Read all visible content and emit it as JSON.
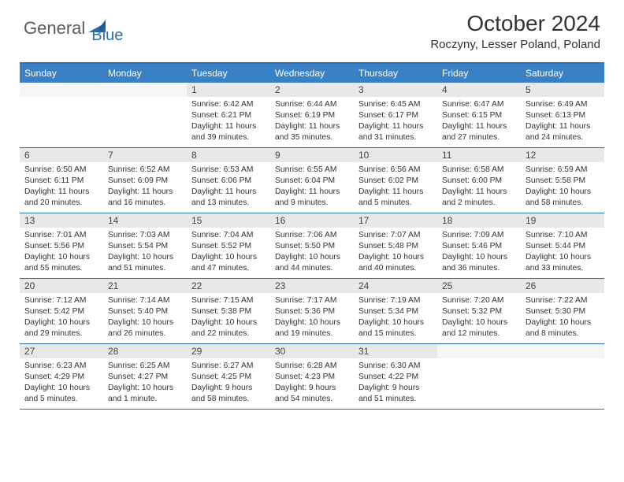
{
  "logo": {
    "part1": "General",
    "part2": "Blue"
  },
  "title": "October 2024",
  "location": "Roczyny, Lesser Poland, Poland",
  "colors": {
    "header_bg": "#3a80c4",
    "border": "#2d6db0",
    "daynum_bg": "#e8e8e8",
    "logo_blue": "#2d6db0",
    "logo_gray": "#5a5a5a"
  },
  "dayHeaders": [
    "Sunday",
    "Monday",
    "Tuesday",
    "Wednesday",
    "Thursday",
    "Friday",
    "Saturday"
  ],
  "weeks": [
    [
      {
        "n": "",
        "sun": "",
        "set": "",
        "day": ""
      },
      {
        "n": "",
        "sun": "",
        "set": "",
        "day": ""
      },
      {
        "n": "1",
        "sun": "Sunrise: 6:42 AM",
        "set": "Sunset: 6:21 PM",
        "day": "Daylight: 11 hours and 39 minutes."
      },
      {
        "n": "2",
        "sun": "Sunrise: 6:44 AM",
        "set": "Sunset: 6:19 PM",
        "day": "Daylight: 11 hours and 35 minutes."
      },
      {
        "n": "3",
        "sun": "Sunrise: 6:45 AM",
        "set": "Sunset: 6:17 PM",
        "day": "Daylight: 11 hours and 31 minutes."
      },
      {
        "n": "4",
        "sun": "Sunrise: 6:47 AM",
        "set": "Sunset: 6:15 PM",
        "day": "Daylight: 11 hours and 27 minutes."
      },
      {
        "n": "5",
        "sun": "Sunrise: 6:49 AM",
        "set": "Sunset: 6:13 PM",
        "day": "Daylight: 11 hours and 24 minutes."
      }
    ],
    [
      {
        "n": "6",
        "sun": "Sunrise: 6:50 AM",
        "set": "Sunset: 6:11 PM",
        "day": "Daylight: 11 hours and 20 minutes."
      },
      {
        "n": "7",
        "sun": "Sunrise: 6:52 AM",
        "set": "Sunset: 6:09 PM",
        "day": "Daylight: 11 hours and 16 minutes."
      },
      {
        "n": "8",
        "sun": "Sunrise: 6:53 AM",
        "set": "Sunset: 6:06 PM",
        "day": "Daylight: 11 hours and 13 minutes."
      },
      {
        "n": "9",
        "sun": "Sunrise: 6:55 AM",
        "set": "Sunset: 6:04 PM",
        "day": "Daylight: 11 hours and 9 minutes."
      },
      {
        "n": "10",
        "sun": "Sunrise: 6:56 AM",
        "set": "Sunset: 6:02 PM",
        "day": "Daylight: 11 hours and 5 minutes."
      },
      {
        "n": "11",
        "sun": "Sunrise: 6:58 AM",
        "set": "Sunset: 6:00 PM",
        "day": "Daylight: 11 hours and 2 minutes."
      },
      {
        "n": "12",
        "sun": "Sunrise: 6:59 AM",
        "set": "Sunset: 5:58 PM",
        "day": "Daylight: 10 hours and 58 minutes."
      }
    ],
    [
      {
        "n": "13",
        "sun": "Sunrise: 7:01 AM",
        "set": "Sunset: 5:56 PM",
        "day": "Daylight: 10 hours and 55 minutes."
      },
      {
        "n": "14",
        "sun": "Sunrise: 7:03 AM",
        "set": "Sunset: 5:54 PM",
        "day": "Daylight: 10 hours and 51 minutes."
      },
      {
        "n": "15",
        "sun": "Sunrise: 7:04 AM",
        "set": "Sunset: 5:52 PM",
        "day": "Daylight: 10 hours and 47 minutes."
      },
      {
        "n": "16",
        "sun": "Sunrise: 7:06 AM",
        "set": "Sunset: 5:50 PM",
        "day": "Daylight: 10 hours and 44 minutes."
      },
      {
        "n": "17",
        "sun": "Sunrise: 7:07 AM",
        "set": "Sunset: 5:48 PM",
        "day": "Daylight: 10 hours and 40 minutes."
      },
      {
        "n": "18",
        "sun": "Sunrise: 7:09 AM",
        "set": "Sunset: 5:46 PM",
        "day": "Daylight: 10 hours and 36 minutes."
      },
      {
        "n": "19",
        "sun": "Sunrise: 7:10 AM",
        "set": "Sunset: 5:44 PM",
        "day": "Daylight: 10 hours and 33 minutes."
      }
    ],
    [
      {
        "n": "20",
        "sun": "Sunrise: 7:12 AM",
        "set": "Sunset: 5:42 PM",
        "day": "Daylight: 10 hours and 29 minutes."
      },
      {
        "n": "21",
        "sun": "Sunrise: 7:14 AM",
        "set": "Sunset: 5:40 PM",
        "day": "Daylight: 10 hours and 26 minutes."
      },
      {
        "n": "22",
        "sun": "Sunrise: 7:15 AM",
        "set": "Sunset: 5:38 PM",
        "day": "Daylight: 10 hours and 22 minutes."
      },
      {
        "n": "23",
        "sun": "Sunrise: 7:17 AM",
        "set": "Sunset: 5:36 PM",
        "day": "Daylight: 10 hours and 19 minutes."
      },
      {
        "n": "24",
        "sun": "Sunrise: 7:19 AM",
        "set": "Sunset: 5:34 PM",
        "day": "Daylight: 10 hours and 15 minutes."
      },
      {
        "n": "25",
        "sun": "Sunrise: 7:20 AM",
        "set": "Sunset: 5:32 PM",
        "day": "Daylight: 10 hours and 12 minutes."
      },
      {
        "n": "26",
        "sun": "Sunrise: 7:22 AM",
        "set": "Sunset: 5:30 PM",
        "day": "Daylight: 10 hours and 8 minutes."
      }
    ],
    [
      {
        "n": "27",
        "sun": "Sunrise: 6:23 AM",
        "set": "Sunset: 4:29 PM",
        "day": "Daylight: 10 hours and 5 minutes."
      },
      {
        "n": "28",
        "sun": "Sunrise: 6:25 AM",
        "set": "Sunset: 4:27 PM",
        "day": "Daylight: 10 hours and 1 minute."
      },
      {
        "n": "29",
        "sun": "Sunrise: 6:27 AM",
        "set": "Sunset: 4:25 PM",
        "day": "Daylight: 9 hours and 58 minutes."
      },
      {
        "n": "30",
        "sun": "Sunrise: 6:28 AM",
        "set": "Sunset: 4:23 PM",
        "day": "Daylight: 9 hours and 54 minutes."
      },
      {
        "n": "31",
        "sun": "Sunrise: 6:30 AM",
        "set": "Sunset: 4:22 PM",
        "day": "Daylight: 9 hours and 51 minutes."
      },
      {
        "n": "",
        "sun": "",
        "set": "",
        "day": ""
      },
      {
        "n": "",
        "sun": "",
        "set": "",
        "day": ""
      }
    ]
  ]
}
